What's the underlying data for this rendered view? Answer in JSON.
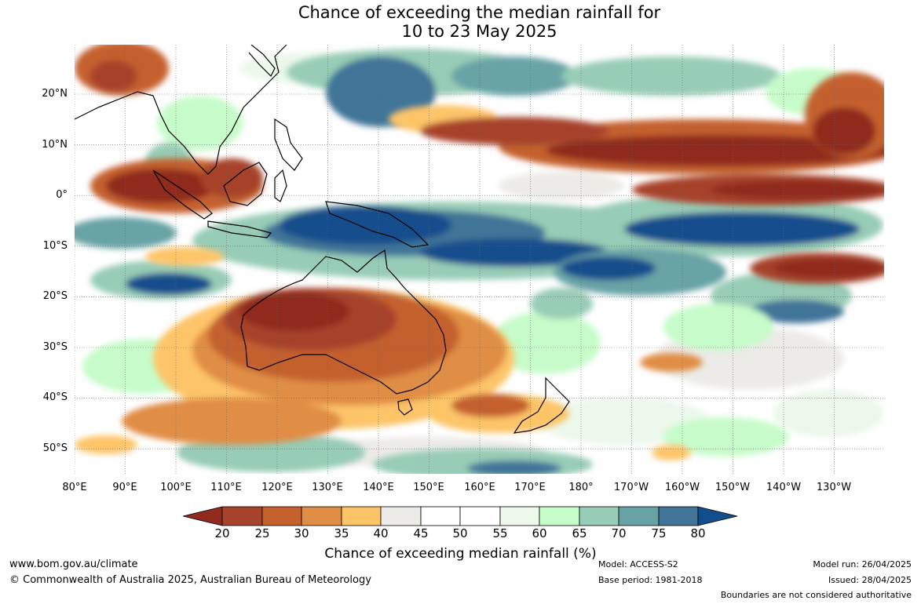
{
  "title": {
    "line1": "Chance of exceeding the median rainfall for",
    "line2": "10 to 23 May 2025"
  },
  "map": {
    "lat_labels": [
      "20°N",
      "10°N",
      "0°",
      "10°S",
      "20°S",
      "30°S",
      "40°S",
      "50°S"
    ],
    "lon_labels": [
      "80°E",
      "90°E",
      "100°E",
      "110°E",
      "120°E",
      "130°E",
      "140°E",
      "150°E",
      "160°E",
      "170°E",
      "180°",
      "170°W",
      "160°W",
      "150°W",
      "140°W",
      "130°W"
    ]
  },
  "colorbar": {
    "ticks": [
      "20",
      "25",
      "30",
      "35",
      "40",
      "45",
      "50",
      "55",
      "60",
      "65",
      "70",
      "75",
      "80"
    ],
    "colors": [
      "#8f2a1d",
      "#a7432a",
      "#c4612f",
      "#e08d45",
      "#fdc467",
      "#ecebe7",
      "#ffffff",
      "#ffffff",
      "#ebf8ea",
      "#c6fcc9",
      "#97ccb6",
      "#67a3a5",
      "#417598",
      "#134e8c"
    ],
    "title": "Chance of exceeding median rainfall (%)"
  },
  "footer": {
    "website": "www.bom.gov.au/climate",
    "copyright": "© Commonwealth of Australia 2025, Australian Bureau of Meteorology",
    "model": "Model: ACCESS-S2",
    "base_period": "Base period: 1981-2018",
    "model_run": "Model run: 26/04/2025",
    "issued": "Issued: 28/04/2025",
    "disclaimer": "Boundaries are not considered authoritative"
  }
}
